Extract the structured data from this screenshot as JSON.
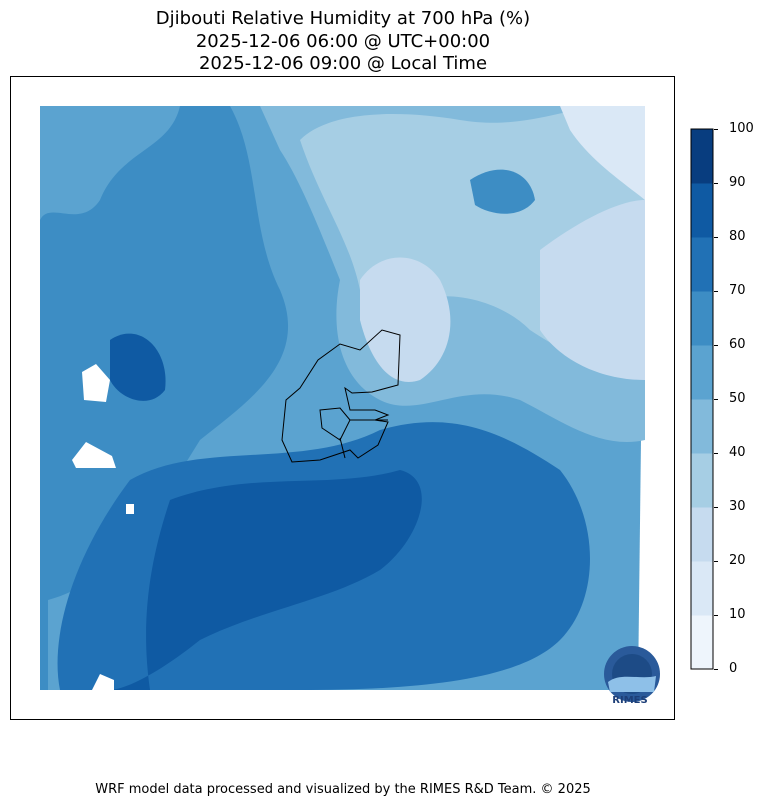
{
  "title": {
    "line1": "Djibouti Relative Humidity at 700 hPa (%)",
    "line2": "2025-12-06 06:00 @ UTC+00:00",
    "line3": "2025-12-06 09:00 @ Local Time"
  },
  "footer": "WRF model data processed and visualized by the RIMES R&D Team. © 2025",
  "logo": {
    "text": "RIMES"
  },
  "chart_data": {
    "type": "heatmap",
    "title": "Djibouti Relative Humidity at 700 hPa (%)",
    "colorbar": {
      "ticks": [
        "0",
        "10",
        "20",
        "30",
        "40",
        "50",
        "60",
        "70",
        "80",
        "90",
        "100"
      ],
      "range": [
        0,
        100
      ],
      "colors": [
        "#eef5fc",
        "#dae8f6",
        "#c6dbef",
        "#a6cee4",
        "#82badb",
        "#5ba3d0",
        "#3d8dc4",
        "#2171b5",
        "#0f5aa3",
        "#083d7f"
      ]
    },
    "description_levels": {
      "southwest": "80-90",
      "north_center": "20-40",
      "northeast": "10-30",
      "west": "60-70"
    }
  }
}
